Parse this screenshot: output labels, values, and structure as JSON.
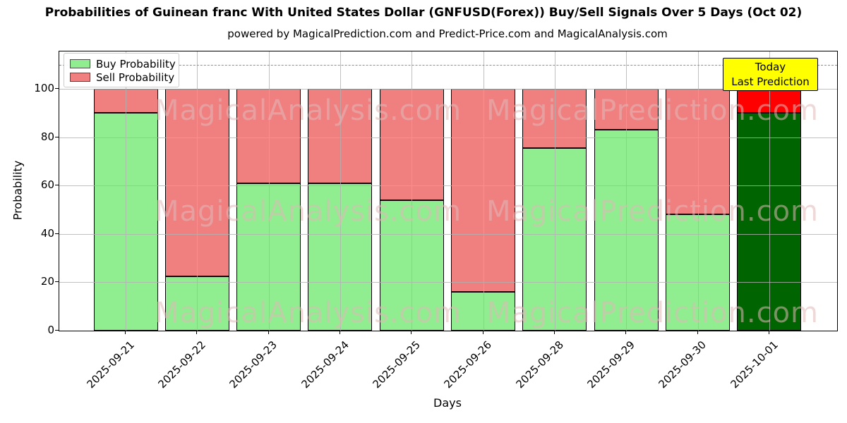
{
  "chart_data": {
    "type": "bar",
    "stacked": true,
    "title": "Probabilities of Guinean franc With United States Dollar (GNFUSD(Forex)) Buy/Sell Signals Over 5 Days (Oct 02)",
    "subtitle": "powered by MagicalPrediction.com and Predict-Price.com and MagicalAnalysis.com",
    "xlabel": "Days",
    "ylabel": "Probability",
    "categories": [
      "2025-09-21",
      "2025-09-22",
      "2025-09-23",
      "2025-09-24",
      "2025-09-25",
      "2025-09-26",
      "2025-09-28",
      "2025-09-29",
      "2025-09-30",
      "2025-10-01"
    ],
    "series": [
      {
        "name": "Buy Probability",
        "color": "#90ee90",
        "today_color": "#006400",
        "values": [
          90,
          22.5,
          61,
          61,
          54,
          16,
          75.5,
          83,
          48,
          90
        ]
      },
      {
        "name": "Sell Probability",
        "color": "#f08080",
        "today_color": "#ff0000",
        "values": [
          10,
          77.5,
          39,
          39,
          46,
          84,
          24.5,
          17,
          52,
          10
        ]
      }
    ],
    "today_index": 9,
    "ylim": [
      0,
      115.5
    ],
    "yticks": [
      0,
      20,
      40,
      60,
      80,
      100
    ],
    "grid": true,
    "grid_color": "#b0b0b0",
    "dashed_line_y": 110,
    "legend_position": "upper-left",
    "annotation": {
      "lines": [
        "Today",
        "Last Prediction"
      ],
      "bg_color": "#ffff00"
    },
    "watermarks": [
      "MagicalAnalysis.com",
      "MagicalPrediction.com"
    ]
  }
}
